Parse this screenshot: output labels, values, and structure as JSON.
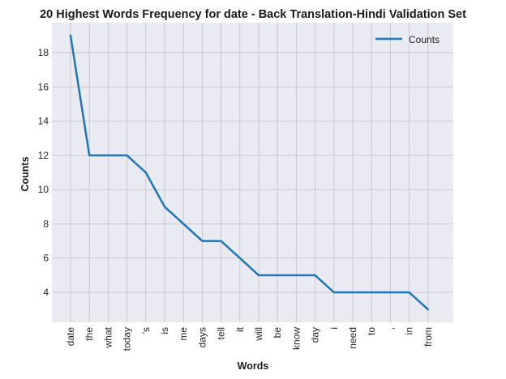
{
  "chart_data": {
    "type": "line",
    "title": "20 Highest Words Frequency for date - Back Translation-Hindi Validation Set",
    "xlabel": "Words",
    "ylabel": "Counts",
    "categories": [
      "date",
      "the",
      "what",
      "today",
      "'s",
      "is",
      "me",
      "days",
      "tell",
      "it",
      "will",
      "be",
      "know",
      "day",
      "i",
      "need",
      "to",
      ",",
      "in",
      "from"
    ],
    "series": [
      {
        "name": "Counts",
        "values": [
          19,
          12,
          12,
          12,
          11,
          9,
          8,
          7,
          7,
          6,
          5,
          5,
          5,
          5,
          4,
          4,
          4,
          4,
          4,
          3
        ]
      }
    ],
    "yticks": [
      4,
      6,
      8,
      10,
      12,
      14,
      16,
      18
    ],
    "ylim": [
      2.25,
      19.75
    ],
    "grid": true,
    "legend_position": "top-right",
    "colors": {
      "line": "#1f77b4",
      "plot_background": "#eaeaf2",
      "grid": "#c6c6ca"
    }
  }
}
